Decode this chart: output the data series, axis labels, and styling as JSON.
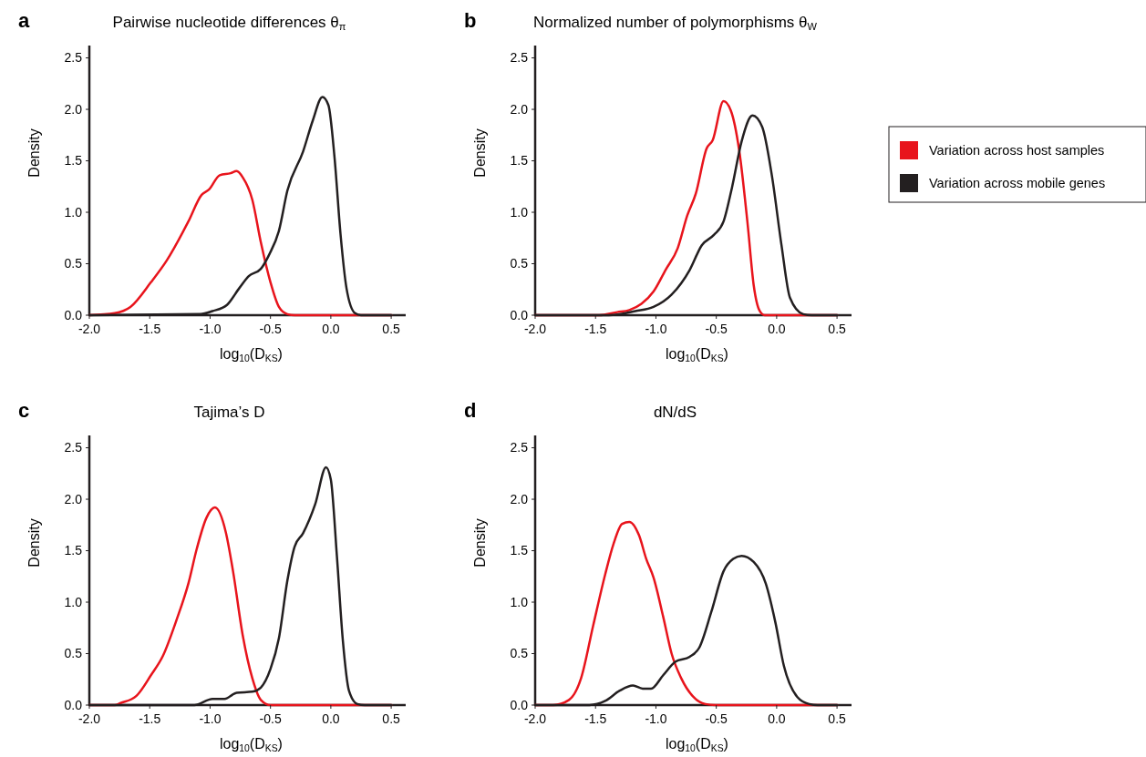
{
  "chart_data": [
    {
      "type": "line",
      "title": "Pairwise nucleotide differences θ$_{π}$",
      "xlabel": "log$_{10}$(D$_{KS}$)",
      "ylabel": "Density",
      "annotations": [
        "a"
      ],
      "xlim": [
        -2,
        0.62
      ],
      "ylim": [
        0,
        2.62
      ],
      "xticks": [
        {
          "value": -2,
          "label": "-2.0"
        },
        {
          "value": -1.5,
          "label": "-1.5"
        },
        {
          "value": -1,
          "label": "-1.0"
        },
        {
          "value": -0.5,
          "label": "-0.5"
        },
        {
          "value": 0,
          "label": "0.0"
        },
        {
          "value": 0.5,
          "label": "0.5"
        }
      ],
      "yticks": [
        {
          "value": 0,
          "label": "0.0"
        },
        {
          "value": 0.5,
          "label": "0.5"
        },
        {
          "value": 1,
          "label": "1.0"
        },
        {
          "value": 1.5,
          "label": "1.5"
        },
        {
          "value": 2,
          "label": "2.0"
        },
        {
          "value": 2.5,
          "label": "2.5"
        }
      ],
      "series": [
        {
          "color": "#e8141c",
          "x": [
            -2,
            -1.79,
            -1.66,
            -1.49,
            -1.36,
            -1.18,
            -1.07,
            -1.01,
            -0.92,
            -0.83,
            -0.78,
            -0.73,
            -0.65,
            -0.58,
            -0.5,
            -0.43,
            -0.36,
            -0.3,
            0.5
          ],
          "values": [
            0,
            0.02,
            0.08,
            0.32,
            0.53,
            0.91,
            1.17,
            1.22,
            1.36,
            1.38,
            1.4,
            1.34,
            1.12,
            0.71,
            0.32,
            0.08,
            0.01,
            0,
            0
          ]
        },
        {
          "color": "#231f20",
          "x": [
            -2,
            -1.08,
            -0.98,
            -0.86,
            -0.76,
            -0.68,
            -0.58,
            -0.51,
            -0.43,
            -0.36,
            -0.23,
            -0.15,
            -0.07,
            -0.02,
            0.03,
            0.08,
            0.13,
            0.2,
            0.25,
            0.5
          ],
          "values": [
            0,
            0.01,
            0.04,
            0.1,
            0.26,
            0.38,
            0.45,
            0.59,
            0.82,
            1.21,
            1.59,
            1.89,
            2.12,
            2.04,
            1.54,
            0.79,
            0.26,
            0.02,
            0,
            0
          ]
        }
      ]
    },
    {
      "type": "line",
      "title": "Normalized number of polymorphisms θ$_{W}$",
      "xlabel": "log$_{10}$(D$_{KS}$)",
      "ylabel": "Density",
      "annotations": [
        "b"
      ],
      "xlim": [
        -2,
        0.62
      ],
      "ylim": [
        0,
        2.62
      ],
      "legend": "right",
      "xticks": [
        {
          "value": -2,
          "label": "-2.0"
        },
        {
          "value": -1.5,
          "label": "-1.5"
        },
        {
          "value": -1,
          "label": "-1.0"
        },
        {
          "value": -0.5,
          "label": "-0.5"
        },
        {
          "value": 0,
          "label": "0.0"
        },
        {
          "value": 0.5,
          "label": "0.5"
        }
      ],
      "yticks": [
        {
          "value": 0,
          "label": "0.0"
        },
        {
          "value": 0.5,
          "label": "0.5"
        },
        {
          "value": 1,
          "label": "1.0"
        },
        {
          "value": 1.5,
          "label": "1.5"
        },
        {
          "value": 2,
          "label": "2.0"
        },
        {
          "value": 2.5,
          "label": "2.5"
        }
      ],
      "series": [
        {
          "name": "Variation across host samples",
          "color": "#e8141c",
          "x": [
            -2,
            -1.47,
            -1.32,
            -1.22,
            -1.12,
            -1.02,
            -0.92,
            -0.82,
            -0.74,
            -0.67,
            -0.58,
            -0.53,
            -0.44,
            -0.38,
            -0.31,
            -0.24,
            -0.19,
            -0.14,
            -0.1,
            0.5
          ],
          "values": [
            0,
            0,
            0.03,
            0.05,
            0.11,
            0.23,
            0.44,
            0.65,
            0.97,
            1.18,
            1.62,
            1.7,
            2.08,
            1.99,
            1.6,
            0.88,
            0.29,
            0.04,
            0,
            0
          ]
        },
        {
          "name": "Variation across mobile genes",
          "color": "#231f20",
          "x": [
            -2,
            -1.39,
            -1.17,
            -1.02,
            -0.87,
            -0.72,
            -0.62,
            -0.52,
            -0.44,
            -0.37,
            -0.29,
            -0.2,
            -0.12,
            -0.04,
            0.04,
            0.11,
            0.22,
            0.29,
            0.5
          ],
          "values": [
            0,
            0,
            0.04,
            0.08,
            0.2,
            0.44,
            0.68,
            0.78,
            0.91,
            1.24,
            1.69,
            1.94,
            1.83,
            1.36,
            0.68,
            0.17,
            0.01,
            0,
            0
          ]
        }
      ]
    },
    {
      "type": "line",
      "title": "Tajima’s D",
      "xlabel": "log$_{10}$(D$_{KS}$)",
      "ylabel": "Density",
      "annotations": [
        "c"
      ],
      "xlim": [
        -2,
        0.62
      ],
      "ylim": [
        0,
        2.62
      ],
      "xticks": [
        {
          "value": -2,
          "label": "-2.0"
        },
        {
          "value": -1.5,
          "label": "-1.5"
        },
        {
          "value": -1,
          "label": "-1.0"
        },
        {
          "value": -0.5,
          "label": "-0.5"
        },
        {
          "value": 0,
          "label": "0.0"
        },
        {
          "value": 0.5,
          "label": "0.5"
        }
      ],
      "yticks": [
        {
          "value": 0,
          "label": "0.0"
        },
        {
          "value": 0.5,
          "label": "0.5"
        },
        {
          "value": 1,
          "label": "1.0"
        },
        {
          "value": 1.5,
          "label": "1.5"
        },
        {
          "value": 2,
          "label": "2.0"
        },
        {
          "value": 2.5,
          "label": "2.5"
        }
      ],
      "series": [
        {
          "color": "#e8141c",
          "x": [
            -2,
            -1.79,
            -1.74,
            -1.61,
            -1.49,
            -1.39,
            -1.28,
            -1.18,
            -1.11,
            -1.03,
            -0.96,
            -0.87,
            -0.81,
            -0.73,
            -0.65,
            -0.58,
            -0.5,
            0.5
          ],
          "values": [
            0,
            0,
            0.02,
            0.09,
            0.29,
            0.48,
            0.82,
            1.18,
            1.52,
            1.82,
            1.92,
            1.68,
            1.3,
            0.68,
            0.26,
            0.05,
            0,
            0
          ]
        },
        {
          "color": "#231f20",
          "x": [
            -2,
            -1.13,
            -0.98,
            -0.88,
            -0.78,
            -0.65,
            -0.58,
            -0.5,
            -0.43,
            -0.36,
            -0.3,
            -0.23,
            -0.13,
            -0.04,
            0,
            0.05,
            0.1,
            0.15,
            0.22,
            0.28,
            0.5
          ],
          "values": [
            0,
            0,
            0.06,
            0.06,
            0.12,
            0.13,
            0.17,
            0.35,
            0.65,
            1.21,
            1.54,
            1.67,
            1.95,
            2.31,
            2.19,
            1.45,
            0.62,
            0.14,
            0.01,
            0,
            0
          ]
        }
      ]
    },
    {
      "type": "line",
      "title": "dN/dS",
      "xlabel": "log$_{10}$(D$_{KS}$)",
      "ylabel": "Density",
      "annotations": [
        "d"
      ],
      "xlim": [
        -2,
        0.62
      ],
      "ylim": [
        0,
        2.62
      ],
      "xticks": [
        {
          "value": -2,
          "label": "-2.0"
        },
        {
          "value": -1.5,
          "label": "-1.5"
        },
        {
          "value": -1,
          "label": "-1.0"
        },
        {
          "value": -0.5,
          "label": "-0.5"
        },
        {
          "value": 0,
          "label": "0.0"
        },
        {
          "value": 0.5,
          "label": "0.5"
        }
      ],
      "yticks": [
        {
          "value": 0,
          "label": "0.0"
        },
        {
          "value": 0.5,
          "label": "0.5"
        },
        {
          "value": 1,
          "label": "1.0"
        },
        {
          "value": 1.5,
          "label": "1.5"
        },
        {
          "value": 2,
          "label": "2.0"
        },
        {
          "value": 2.5,
          "label": "2.5"
        }
      ],
      "series": [
        {
          "color": "#e8141c",
          "x": [
            -2,
            -1.85,
            -1.72,
            -1.62,
            -1.52,
            -1.42,
            -1.35,
            -1.28,
            -1.22,
            -1.14,
            -1.08,
            -1.02,
            -0.94,
            -0.87,
            -0.79,
            -0.69,
            -0.59,
            -0.51,
            0.5
          ],
          "values": [
            0,
            0,
            0.05,
            0.26,
            0.77,
            1.27,
            1.57,
            1.76,
            1.78,
            1.65,
            1.42,
            1.24,
            0.86,
            0.5,
            0.26,
            0.08,
            0.01,
            0,
            0
          ]
        },
        {
          "color": "#231f20",
          "x": [
            -2,
            -1.55,
            -1.42,
            -1.3,
            -1.19,
            -1.11,
            -1.04,
            -0.94,
            -0.84,
            -0.72,
            -0.64,
            -0.54,
            -0.44,
            -0.36,
            -0.29,
            -0.19,
            -0.09,
            -0.01,
            0.06,
            0.17,
            0.27,
            0.34,
            0.5
          ],
          "values": [
            0,
            0,
            0.04,
            0.14,
            0.19,
            0.16,
            0.16,
            0.29,
            0.42,
            0.47,
            0.56,
            0.91,
            1.3,
            1.42,
            1.45,
            1.39,
            1.18,
            0.8,
            0.38,
            0.08,
            0.01,
            0,
            0
          ]
        }
      ]
    }
  ]
}
